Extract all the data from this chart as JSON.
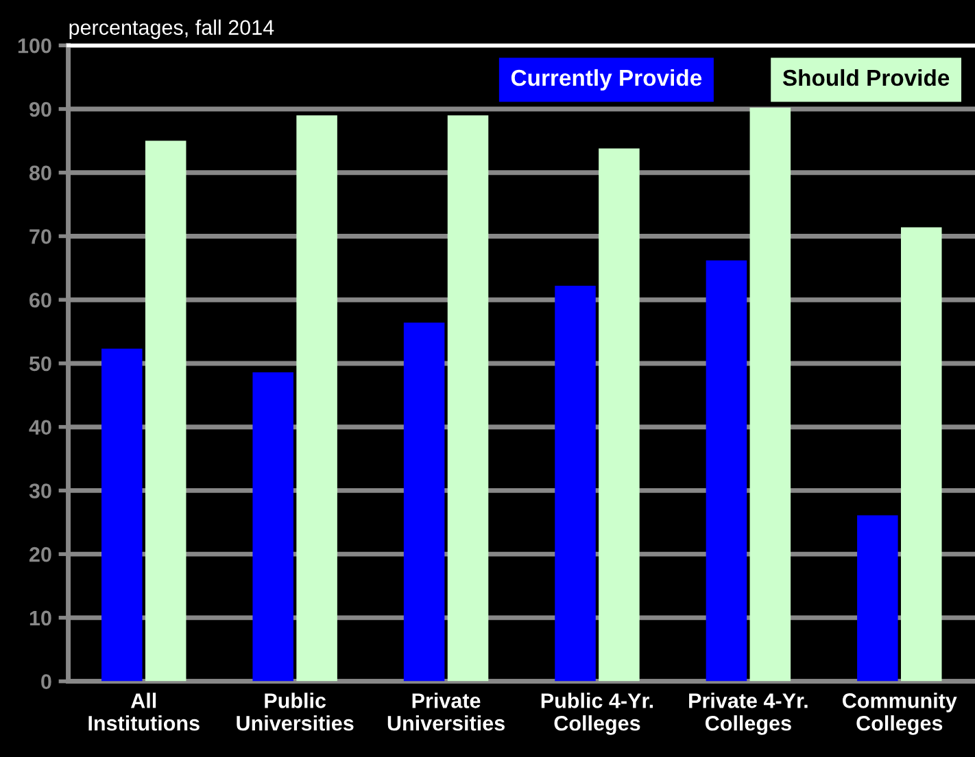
{
  "chart_data": {
    "type": "bar",
    "ylabel": "percentages, fall 2014",
    "categories": [
      "All\nInstitutions",
      "Public\nUniversities",
      "Private\nUniversities",
      "Public 4-Yr.\nColleges",
      "Private 4-Yr.\nColleges",
      "Community\nColleges"
    ],
    "series": [
      {
        "name": "Currently Provide",
        "color": "#0000ff",
        "values": [
          52.3,
          48.6,
          56.4,
          62.2,
          66.2,
          26.1
        ]
      },
      {
        "name": "Should Provide",
        "color": "#ccffcc",
        "values": [
          85,
          89,
          89,
          83.8,
          90.2,
          71.4
        ]
      }
    ],
    "ylim": [
      0,
      100
    ],
    "yticks": [
      0,
      10,
      20,
      30,
      40,
      50,
      60,
      70,
      80,
      90,
      100
    ],
    "grid": "y",
    "legend": "top"
  }
}
